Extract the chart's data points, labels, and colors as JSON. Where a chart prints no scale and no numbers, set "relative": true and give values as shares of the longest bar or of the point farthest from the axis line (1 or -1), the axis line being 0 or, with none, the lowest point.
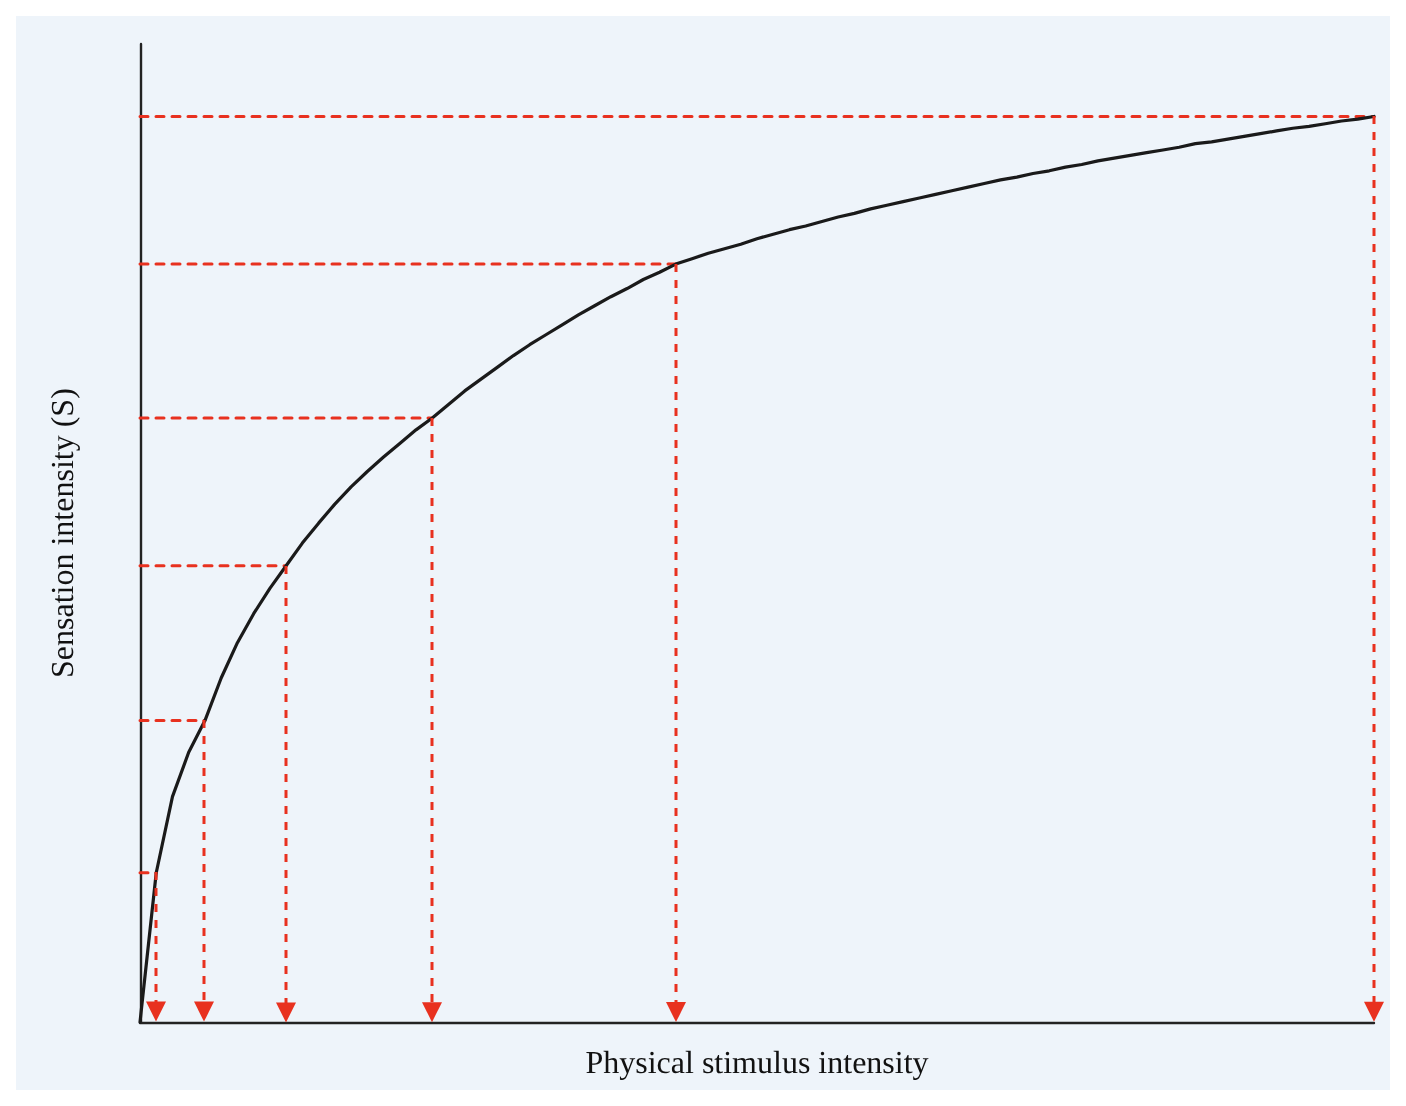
{
  "chart_data": {
    "type": "line",
    "relative": true,
    "xlabel": "Physical stimulus intensity",
    "ylabel": "Sensation intensity (S)",
    "categories": [
      null,
      null,
      null,
      null,
      null,
      null,
      null,
      null,
      null,
      null,
      null,
      null,
      null,
      null,
      null,
      null,
      null,
      null,
      null,
      null,
      null,
      null,
      null,
      null,
      null,
      null,
      null,
      null,
      null,
      null,
      null,
      null,
      null,
      null,
      null,
      null,
      null,
      null,
      null,
      null,
      null,
      null,
      null,
      null,
      null,
      null,
      null,
      null,
      null,
      null,
      null,
      null,
      null,
      null,
      null,
      null,
      null,
      null,
      null,
      null,
      null,
      null,
      null,
      null,
      null,
      null,
      null,
      null,
      null,
      null,
      null,
      null,
      null,
      null,
      null,
      null,
      null
    ],
    "series": [
      {
        "color": "#1a1a1a",
        "line_style": "solid",
        "values": [
          0,
          0.165,
          0.249,
          0.298,
          0.333,
          0.38,
          0.419,
          0.451,
          0.479,
          0.504,
          0.529,
          0.551,
          0.572,
          0.591,
          0.608,
          0.624,
          0.639,
          0.654,
          0.667,
          0.682,
          0.697,
          0.71,
          0.723,
          0.736,
          0.748,
          0.759,
          0.77,
          0.781,
          0.791,
          0.801,
          0.81,
          0.82,
          0.828,
          0.837,
          0.843,
          0.849,
          0.854,
          0.859,
          0.865,
          0.87,
          0.875,
          0.879,
          0.884,
          0.889,
          0.893,
          0.898,
          0.902,
          0.906,
          0.91,
          0.914,
          0.918,
          0.922,
          0.926,
          0.93,
          0.933,
          0.937,
          0.94,
          0.944,
          0.947,
          0.951,
          0.954,
          0.957,
          0.96,
          0.963,
          0.966,
          0.97,
          0.972,
          0.975,
          0.978,
          0.981,
          0.984,
          0.987,
          0.989,
          0.992,
          0.995,
          0.997,
          1
        ]
      },
      {
        "color": "#e8311f",
        "line_style": "dashed",
        "values": [
          0.165,
          0.165,
          null,
          null,
          null,
          null,
          null,
          null,
          null,
          null,
          null,
          null,
          null,
          null,
          null,
          null,
          null,
          null,
          null,
          null,
          null,
          null,
          null,
          null,
          null,
          null,
          null,
          null,
          null,
          null,
          null,
          null,
          null,
          null,
          null,
          null,
          null,
          null,
          null,
          null,
          null,
          null,
          null,
          null,
          null,
          null,
          null,
          null,
          null,
          null,
          null,
          null,
          null,
          null,
          null,
          null,
          null,
          null,
          null,
          null,
          null,
          null,
          null,
          null,
          null,
          null,
          null,
          null,
          null,
          null,
          null,
          null,
          null,
          null,
          null,
          null,
          null
        ]
      },
      {
        "color": "#e8311f",
        "line_style": "dashed",
        "values": [
          0.333,
          0.333,
          0.333,
          0.333,
          0.333,
          null,
          null,
          null,
          null,
          null,
          null,
          null,
          null,
          null,
          null,
          null,
          null,
          null,
          null,
          null,
          null,
          null,
          null,
          null,
          null,
          null,
          null,
          null,
          null,
          null,
          null,
          null,
          null,
          null,
          null,
          null,
          null,
          null,
          null,
          null,
          null,
          null,
          null,
          null,
          null,
          null,
          null,
          null,
          null,
          null,
          null,
          null,
          null,
          null,
          null,
          null,
          null,
          null,
          null,
          null,
          null,
          null,
          null,
          null,
          null,
          null,
          null,
          null,
          null,
          null,
          null,
          null,
          null,
          null,
          null,
          null,
          null
        ]
      },
      {
        "color": "#e8311f",
        "line_style": "dashed",
        "values": [
          0.504,
          0.504,
          0.504,
          0.504,
          0.504,
          0.504,
          0.504,
          0.504,
          0.504,
          0.504,
          null,
          null,
          null,
          null,
          null,
          null,
          null,
          null,
          null,
          null,
          null,
          null,
          null,
          null,
          null,
          null,
          null,
          null,
          null,
          null,
          null,
          null,
          null,
          null,
          null,
          null,
          null,
          null,
          null,
          null,
          null,
          null,
          null,
          null,
          null,
          null,
          null,
          null,
          null,
          null,
          null,
          null,
          null,
          null,
          null,
          null,
          null,
          null,
          null,
          null,
          null,
          null,
          null,
          null,
          null,
          null,
          null,
          null,
          null,
          null,
          null,
          null,
          null,
          null,
          null,
          null,
          null
        ]
      },
      {
        "color": "#e8311f",
        "line_style": "dashed",
        "values": [
          0.667,
          0.667,
          0.667,
          0.667,
          0.667,
          0.667,
          0.667,
          0.667,
          0.667,
          0.667,
          0.667,
          0.667,
          0.667,
          0.667,
          0.667,
          0.667,
          0.667,
          0.667,
          0.667,
          null,
          null,
          null,
          null,
          null,
          null,
          null,
          null,
          null,
          null,
          null,
          null,
          null,
          null,
          null,
          null,
          null,
          null,
          null,
          null,
          null,
          null,
          null,
          null,
          null,
          null,
          null,
          null,
          null,
          null,
          null,
          null,
          null,
          null,
          null,
          null,
          null,
          null,
          null,
          null,
          null,
          null,
          null,
          null,
          null,
          null,
          null,
          null,
          null,
          null,
          null,
          null,
          null,
          null,
          null,
          null,
          null,
          null
        ]
      },
      {
        "color": "#e8311f",
        "line_style": "dashed",
        "values": [
          0.837,
          0.837,
          0.837,
          0.837,
          0.837,
          0.837,
          0.837,
          0.837,
          0.837,
          0.837,
          0.837,
          0.837,
          0.837,
          0.837,
          0.837,
          0.837,
          0.837,
          0.837,
          0.837,
          0.837,
          0.837,
          0.837,
          0.837,
          0.837,
          0.837,
          0.837,
          0.837,
          0.837,
          0.837,
          0.837,
          0.837,
          0.837,
          0.837,
          0.837,
          null,
          null,
          null,
          null,
          null,
          null,
          null,
          null,
          null,
          null,
          null,
          null,
          null,
          null,
          null,
          null,
          null,
          null,
          null,
          null,
          null,
          null,
          null,
          null,
          null,
          null,
          null,
          null,
          null,
          null,
          null,
          null,
          null,
          null,
          null,
          null,
          null,
          null,
          null,
          null,
          null,
          null,
          null
        ]
      },
      {
        "color": "#e8311f",
        "line_style": "dashed",
        "values": [
          1,
          1,
          1,
          1,
          1,
          1,
          1,
          1,
          1,
          1,
          1,
          1,
          1,
          1,
          1,
          1,
          1,
          1,
          1,
          1,
          1,
          1,
          1,
          1,
          1,
          1,
          1,
          1,
          1,
          1,
          1,
          1,
          1,
          1,
          1,
          1,
          1,
          1,
          1,
          1,
          1,
          1,
          1,
          1,
          1,
          1,
          1,
          1,
          1,
          1,
          1,
          1,
          1,
          1,
          1,
          1,
          1,
          1,
          1,
          1,
          1,
          1,
          1,
          1,
          1,
          1,
          1,
          1,
          1,
          1,
          1,
          1,
          1,
          1,
          1,
          1,
          1
        ]
      }
    ]
  }
}
